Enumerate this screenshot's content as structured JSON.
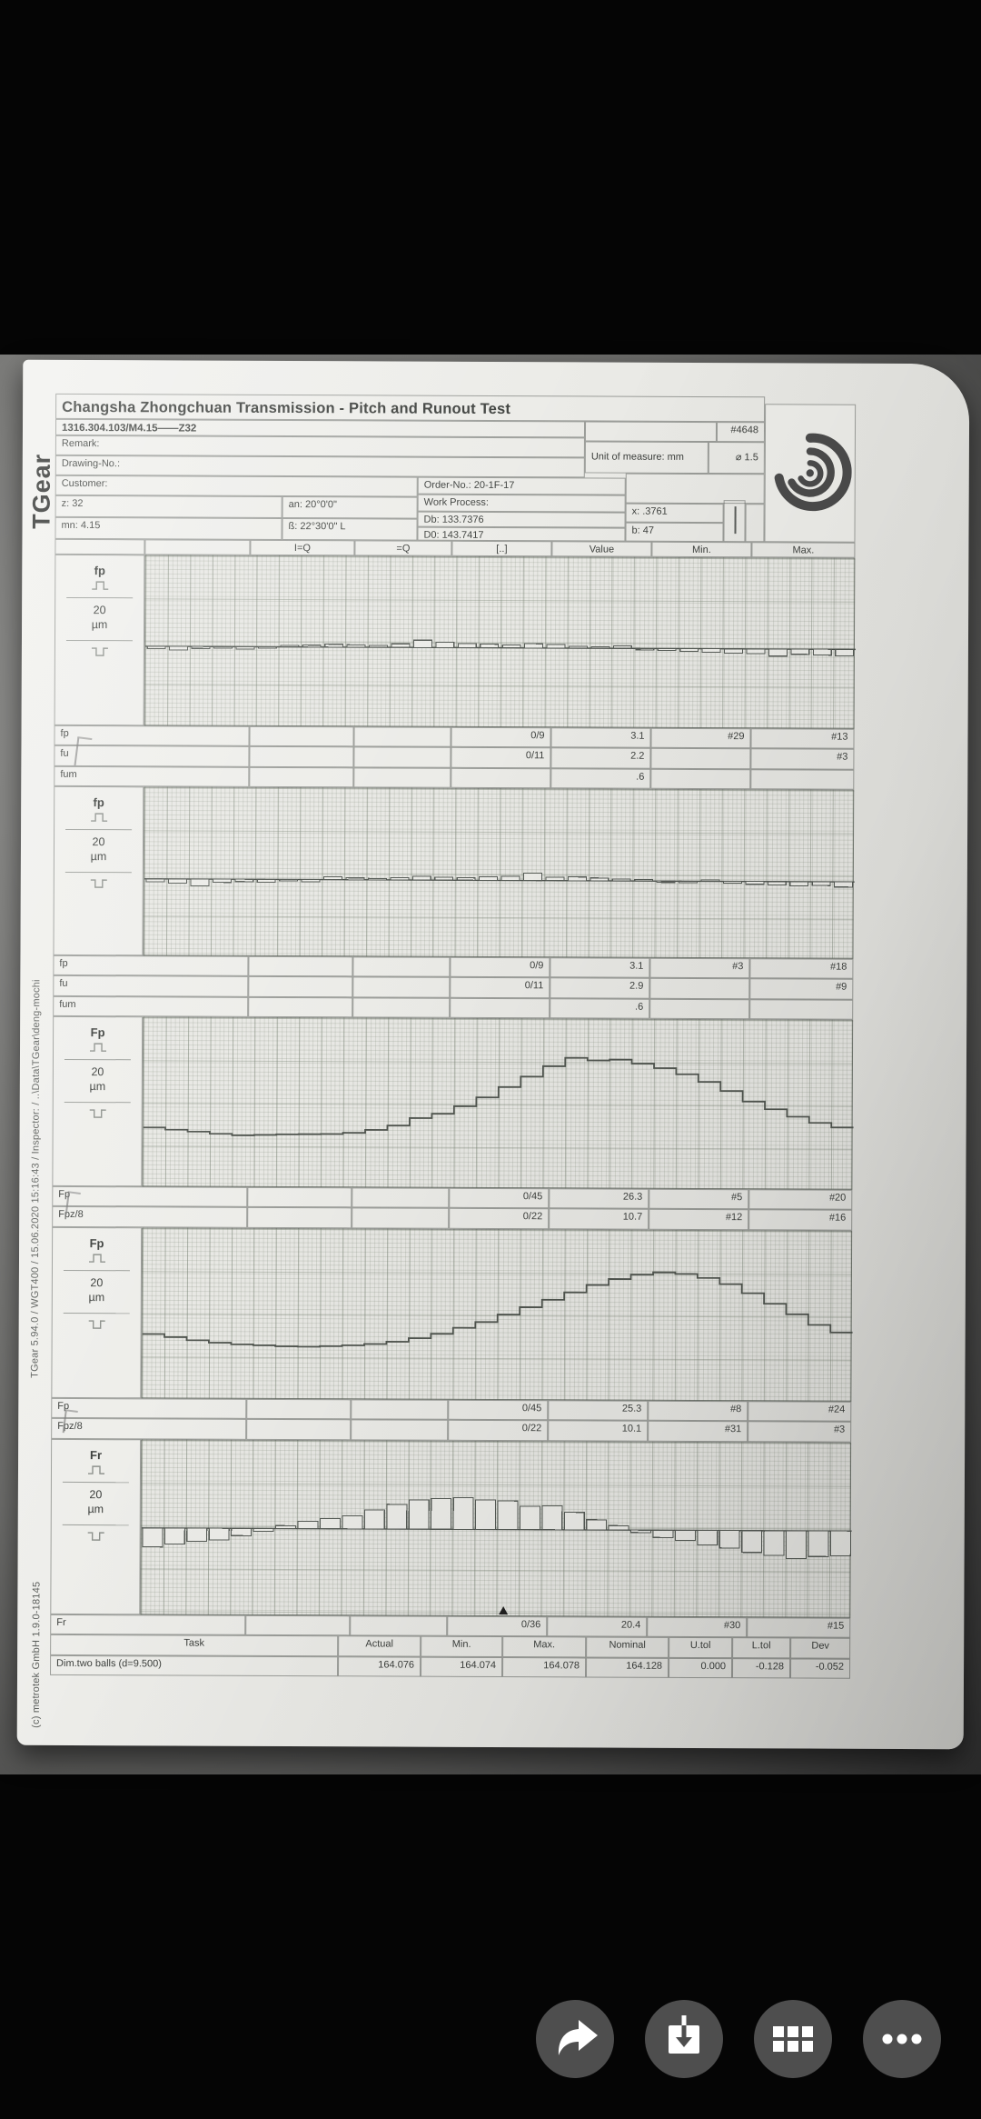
{
  "report": {
    "brand": "TGear",
    "title": "Changsha Zhongchuan Transmission  - Pitch and Runout Test",
    "part_no": "1316.304.103/M4.15——Z32",
    "remark": "Remark:",
    "drawing_no": "Drawing-No.:",
    "customer": "Customer:",
    "serial": "#4648",
    "unit_of_measure": "Unit of measure: mm",
    "probe_dia": "⌀ 1.5",
    "z": "z: 32",
    "an": "an: 20°0'0\"",
    "mn": "mn: 4.15",
    "beta": "ß: 22°30'0\" L",
    "order_no": "Order-No.: 20-1F-17",
    "work_process": "Work Process:",
    "db": "Db: 133.7376",
    "d0": "D0: 143.7417",
    "x": "x: .3761",
    "b": "b: 47",
    "columns": [
      "I=Q",
      "=Q",
      "[..]",
      "Value",
      "Min.",
      "Max."
    ],
    "sections": [
      {
        "label": "fp",
        "scale": "20",
        "scale_unit": "µm",
        "rows": [
          [
            "fp",
            "",
            "",
            "0/9",
            "3.1",
            "#29",
            "#13"
          ],
          [
            "fu",
            "",
            "",
            "0/11",
            "2.2",
            "",
            "#3"
          ],
          [
            "fum",
            "",
            "",
            "",
            ".6",
            "",
            ""
          ]
        ]
      },
      {
        "label": "fp",
        "scale": "20",
        "scale_unit": "µm",
        "rows": [
          [
            "fp",
            "",
            "",
            "0/9",
            "3.1",
            "#3",
            "#18"
          ],
          [
            "fu",
            "",
            "",
            "0/11",
            "2.9",
            "",
            "#9"
          ],
          [
            "fum",
            "",
            "",
            "",
            ".6",
            "",
            ""
          ]
        ]
      },
      {
        "label": "Fp",
        "scale": "20",
        "scale_unit": "µm",
        "rows": [
          [
            "Fp",
            "",
            "",
            "0/45",
            "26.3",
            "#5",
            "#20"
          ],
          [
            "Fpz/8",
            "",
            "",
            "0/22",
            "10.7",
            "#12",
            "#16"
          ]
        ]
      },
      {
        "label": "Fp",
        "scale": "20",
        "scale_unit": "µm",
        "rows": [
          [
            "Fp",
            "",
            "",
            "0/45",
            "25.3",
            "#8",
            "#24"
          ],
          [
            "Fpz/8",
            "",
            "",
            "0/22",
            "10.1",
            "#31",
            "#3"
          ]
        ]
      },
      {
        "label": "Fr",
        "scale": "20",
        "scale_unit": "µm",
        "rows": [
          [
            "Fr",
            "",
            "",
            "0/36",
            "20.4",
            "#30",
            "#15"
          ]
        ]
      }
    ],
    "task_table": {
      "headers": [
        "Task",
        "Actual",
        "Min.",
        "Max.",
        "Nominal",
        "U.tol",
        "L.tol",
        "Dev"
      ],
      "rows": [
        [
          "Dim.two balls (d=9.500)",
          "164.076",
          "164.074",
          "164.078",
          "164.128",
          "0.000",
          "-0.128",
          "-0.052"
        ]
      ]
    },
    "side_note": "TGear 5.94.0 / WGT400 / 15.06.2020 15:16:43 / Inspector:  /  ..\\Data\\TGear\\deng-mochi",
    "copyright": "(c) metrotek GmbH 1.9.0-18145"
  },
  "actions": [
    {
      "name": "share"
    },
    {
      "name": "download"
    },
    {
      "name": "apps-grid"
    },
    {
      "name": "more"
    }
  ],
  "chart_data": [
    {
      "type": "bar",
      "name": "fp single pitch deviation, flank I",
      "unit": "µm",
      "teeth": 32,
      "grid_div_um": 20,
      "stats": {
        "fp": 3.1,
        "fu": 2.2,
        "fum": 0.6,
        "min_tooth": 29,
        "max_tooth": 13
      },
      "values": [
        -1.0,
        -1.5,
        -0.8,
        -0.6,
        -1.0,
        -0.4,
        0.3,
        0.8,
        1.2,
        1.0,
        0.8,
        1.5,
        3.1,
        2.2,
        1.8,
        1.5,
        1.2,
        1.8,
        1.5,
        0.8,
        0.5,
        1.0,
        -0.3,
        -0.8,
        -1.2,
        -1.5,
        -1.8,
        -2.0,
        -3.0,
        -2.2,
        -2.5,
        -2.8
      ]
    },
    {
      "type": "bar",
      "name": "fp single pitch deviation, flank II",
      "unit": "µm",
      "teeth": 32,
      "grid_div_um": 20,
      "stats": {
        "fp": 3.1,
        "fu": 2.9,
        "fum": 0.6,
        "min_tooth": 3,
        "max_tooth": 18
      },
      "values": [
        -1.2,
        -1.8,
        -2.9,
        -1.4,
        -1.0,
        -1.2,
        -0.6,
        -1.0,
        1.2,
        0.8,
        0.3,
        1.0,
        1.5,
        1.2,
        1.0,
        1.5,
        1.8,
        3.1,
        1.4,
        1.6,
        1.2,
        0.8,
        0.4,
        -0.4,
        -0.6,
        0.5,
        -0.8,
        -1.2,
        -1.5,
        -1.8,
        -1.6,
        -2.2
      ]
    },
    {
      "type": "step",
      "name": "Fp cumulative pitch deviation, flank I",
      "unit": "µm",
      "teeth": 32,
      "grid_div_um": 20,
      "stats": {
        "Fp": 26.3,
        "Fpz8": 10.7,
        "min_tooth": 5,
        "max_tooth": 20
      },
      "values": [
        -1.5,
        -2.2,
        -2.8,
        -3.5,
        -4.0,
        -3.8,
        -3.6,
        -3.5,
        -3.4,
        -3.0,
        -2.0,
        -0.5,
        2.0,
        3.5,
        6.0,
        9.0,
        12.5,
        16.0,
        19.5,
        22.3,
        21.5,
        21.8,
        20.5,
        19.0,
        17.0,
        14.5,
        11.5,
        8.0,
        5.5,
        3.0,
        1.0,
        -0.5
      ]
    },
    {
      "type": "step",
      "name": "Fp cumulative pitch deviation, flank II",
      "unit": "µm",
      "teeth": 32,
      "grid_div_um": 20,
      "stats": {
        "Fp": 25.3,
        "Fpz8": 10.1,
        "min_tooth": 8,
        "max_tooth": 24
      },
      "values": [
        -1.0,
        -2.0,
        -3.0,
        -3.8,
        -4.3,
        -4.6,
        -4.9,
        -5.0,
        -4.8,
        -4.5,
        -4.0,
        -3.2,
        -2.0,
        -0.5,
        1.5,
        3.5,
        6.0,
        8.5,
        11.0,
        13.5,
        16.0,
        18.0,
        19.5,
        20.3,
        19.8,
        18.5,
        16.5,
        13.5,
        10.0,
        6.5,
        3.0,
        0.5
      ]
    },
    {
      "type": "bar",
      "name": "Fr radial runout",
      "unit": "µm",
      "teeth": 32,
      "grid_div_um": 20,
      "wide_bars": true,
      "marker_x_fraction": 0.51,
      "stats": {
        "Fr": 20.4,
        "min_tooth": 30,
        "max_tooth": 15
      },
      "values": [
        -6.5,
        -5.5,
        -4.5,
        -4.0,
        -2.5,
        -1.0,
        1.0,
        2.5,
        3.5,
        4.5,
        6.5,
        8.5,
        10.0,
        10.5,
        10.9,
        10.2,
        9.8,
        8.0,
        8.2,
        6.0,
        3.5,
        1.5,
        -0.8,
        -2.5,
        -3.5,
        -5.0,
        -6.0,
        -7.5,
        -8.5,
        -9.5,
        -8.8,
        -8.5
      ]
    }
  ]
}
